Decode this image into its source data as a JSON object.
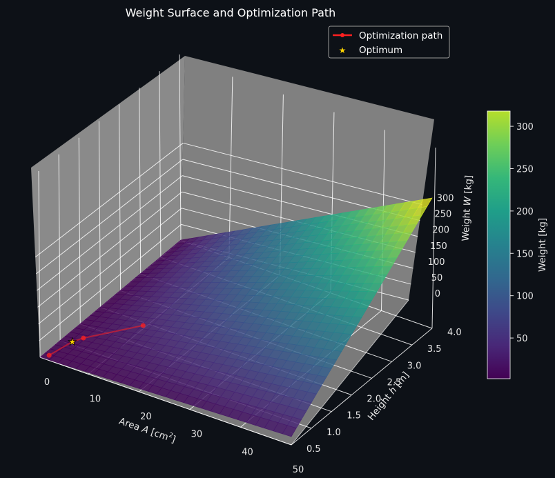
{
  "chart_data": {
    "type": "surface3d",
    "title": "Weight Surface and Optimization Path",
    "x_axis": {
      "label_prefix": "Area ",
      "label_var": "A",
      "label_unit_open": " [cm",
      "label_sup": "2",
      "label_unit_close": "]",
      "range": [
        0.5,
        50
      ],
      "ticks": [
        0,
        10,
        20,
        30,
        40,
        50
      ]
    },
    "y_axis": {
      "label_prefix": "Height ",
      "label_var": "h",
      "label_suffix": " [m]",
      "range": [
        0.5,
        4.0
      ],
      "ticks": [
        0.5,
        1.0,
        1.5,
        2.0,
        2.5,
        3.0,
        3.5,
        4.0
      ]
    },
    "z_axis": {
      "label_prefix": "Weight ",
      "label_var": "W",
      "label_suffix": " [kg]",
      "ticks": [
        0,
        50,
        100,
        150,
        200,
        250,
        300
      ]
    },
    "surface": {
      "colormap": "viridis",
      "corners": [
        {
          "A": 0.5,
          "h": 0.5,
          "W": 0.2
        },
        {
          "A": 50,
          "h": 0.5,
          "W": 20
        },
        {
          "A": 0.5,
          "h": 4.0,
          "W": 1.6
        },
        {
          "A": 50,
          "h": 4.0,
          "W": 315
        }
      ]
    },
    "optimization_path": {
      "points": [
        {
          "A": 10.5,
          "h": 1.8,
          "W": 15
        },
        {
          "A": 3.5,
          "h": 1.2,
          "W": 3
        },
        {
          "A": 2.5,
          "h": 1.05,
          "W": 2
        },
        {
          "A": 1.5,
          "h": 0.6,
          "W": 1
        }
      ],
      "color": "#ff2020"
    },
    "optimum": {
      "A": 2.5,
      "h": 1.05,
      "W": 2,
      "color": "#ffd400"
    },
    "legend": {
      "placement": "top-right",
      "entries": [
        "Optimization path",
        "Optimum"
      ]
    },
    "colorbar": {
      "label": "Weight [kg]",
      "range": [
        2,
        318
      ],
      "ticks": [
        50,
        100,
        150,
        200,
        250,
        300
      ]
    },
    "colors": {
      "background": "#0d1117",
      "pane": "#808080",
      "grid": "#ffffff"
    }
  }
}
